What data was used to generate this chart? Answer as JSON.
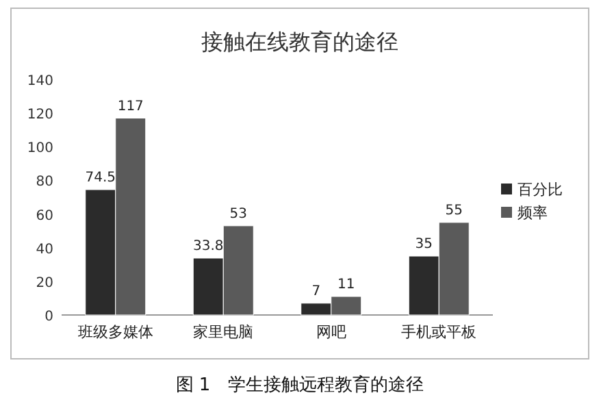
{
  "chart_data": {
    "type": "bar",
    "title": "接触在线教育的途径",
    "categories": [
      "班级多媒体",
      "家里电脑",
      "网吧",
      "手机或平板"
    ],
    "series": [
      {
        "name": "百分比",
        "color": "#2b2b2b",
        "values": [
          74.5,
          33.8,
          7,
          35
        ]
      },
      {
        "name": "频率",
        "color": "#5a5a5a",
        "values": [
          117,
          53,
          11,
          55
        ]
      }
    ],
    "ylim": [
      0,
      140
    ],
    "yticks": [
      0,
      20,
      40,
      60,
      80,
      100,
      120,
      140
    ],
    "data_labels": true,
    "legend": "right",
    "grid": false,
    "annotations": [
      "图 1　学生接触远程教育的途径"
    ]
  }
}
